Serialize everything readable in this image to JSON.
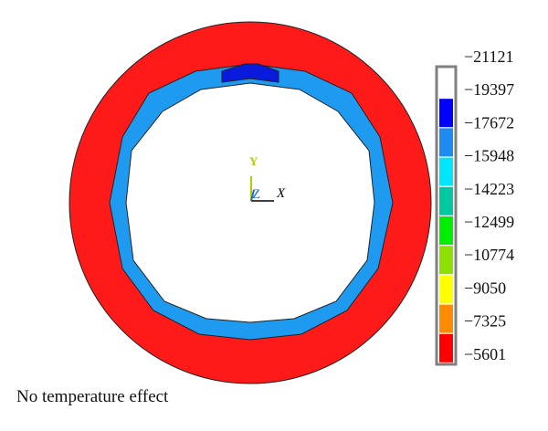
{
  "legend": {
    "values": [
      "−21121",
      "−19397",
      "−17672",
      "−15948",
      "−14223",
      "−12499",
      "−10774",
      "−9050",
      "−7325",
      "−5601"
    ],
    "colors": [
      "#ffffff",
      "#0000ff",
      "#1e8bf0",
      "#00e6ff",
      "#00c8a0",
      "#00ee00",
      "#8ee000",
      "#ffff00",
      "#ff8c00",
      "#ff0000"
    ]
  },
  "axis": {
    "x": "X",
    "y": "Y",
    "z": "Z"
  },
  "colors": {
    "outer_ring": "#ff1a1a",
    "inner_ring": "#1e9bf0",
    "peak": "#0a1adc",
    "axis_x": "#000000",
    "axis_y": "#b0cc00",
    "axis_z": "#1a6bd4",
    "legend_border": "#808080"
  },
  "caption": "No temperature effect"
}
